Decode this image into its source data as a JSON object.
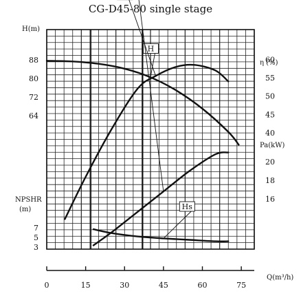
{
  "title": "CG-D45-80 single stage",
  "axes": {
    "left_head_label": "H(m)",
    "left_npshr_label": "NPSHR",
    "left_npshr_unit": "(m)",
    "right_eff_label": "η (%)",
    "right_power_label": "Pa(kW)",
    "x_label": "Q(m³/h)"
  },
  "chart_data": {
    "type": "line",
    "title": "CG-D45-80 single stage",
    "xlabel": "Q(m³/h)",
    "xlim": [
      0,
      80
    ],
    "x_ticks": [
      0,
      15,
      30,
      45,
      60,
      75
    ],
    "grid": true,
    "series": [
      {
        "name": "H",
        "axis": "head",
        "label_at": [
          38,
          92
        ],
        "x": [
          0,
          10,
          20,
          30,
          40,
          50,
          60,
          70,
          74
        ],
        "y": [
          87.6,
          87.3,
          86.3,
          84.2,
          80.5,
          74.8,
          67.0,
          57.0,
          51.5
        ]
      },
      {
        "name": "η",
        "axis": "efficiency",
        "label_at": [
          28,
          77
        ],
        "x": [
          7,
          15,
          25,
          35,
          42,
          50,
          57,
          65,
          70
        ],
        "y": [
          16.5,
          28.0,
          41.0,
          52.0,
          55.5,
          58.0,
          58.5,
          57.0,
          54.0
        ]
      },
      {
        "name": "Pa",
        "axis": "power",
        "label_at": [
          28,
          46
        ],
        "x": [
          18,
          25,
          35,
          45,
          55,
          65,
          70
        ],
        "y": [
          11.0,
          12.4,
          14.6,
          16.8,
          19.0,
          20.8,
          21.0
        ]
      },
      {
        "name": "Hs",
        "axis": "npshr",
        "label_at": [
          52,
          11
        ],
        "x": [
          18,
          25,
          35,
          45,
          55,
          65,
          70
        ],
        "y": [
          6.7,
          5.9,
          5.2,
          4.8,
          4.5,
          4.2,
          4.2
        ]
      }
    ],
    "axes_scales": {
      "head": {
        "ticks": [
          64,
          72,
          80,
          88
        ]
      },
      "npshr": {
        "ticks": [
          3,
          5,
          7
        ]
      },
      "efficiency": {
        "ticks": [
          40,
          45,
          50,
          55,
          60
        ]
      },
      "power": {
        "ticks": [
          16,
          18,
          20
        ]
      }
    },
    "annotations": {
      "vertical_lines_x": [
        17,
        37
      ]
    }
  }
}
